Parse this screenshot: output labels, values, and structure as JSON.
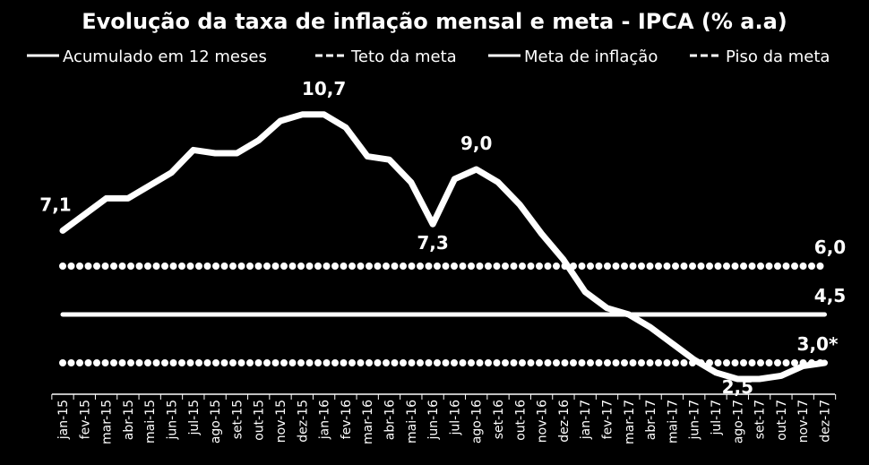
{
  "chart_data": {
    "type": "line",
    "title": "Evolução da taxa de inflação mensal e meta - IPCA (% a.a)",
    "categories": [
      "jan-15",
      "fev-15",
      "mar-15",
      "abr-15",
      "mai-15",
      "jun-15",
      "jul-15",
      "ago-15",
      "set-15",
      "out-15",
      "nov-15",
      "dez-15",
      "jan-16",
      "fev-16",
      "mar-16",
      "abr-16",
      "mai-16",
      "jun-16",
      "jul-16",
      "ago-16",
      "set-16",
      "out-16",
      "nov-16",
      "dez-16",
      "jan-17",
      "fev-17",
      "mar-17",
      "abr-17",
      "mai-17",
      "jun-17",
      "jul-17",
      "ago-17",
      "set-17",
      "out-17",
      "nov-17",
      "dez-17"
    ],
    "ylim": [
      2.0,
      11.5
    ],
    "series": [
      {
        "name": "Acumulado em 12 meses",
        "color": "#ffffff",
        "dashed": false,
        "values": [
          7.1,
          7.6,
          8.1,
          8.1,
          8.5,
          8.9,
          9.6,
          9.5,
          9.5,
          9.9,
          10.5,
          10.7,
          10.7,
          10.3,
          9.4,
          9.3,
          8.6,
          7.3,
          8.7,
          9.0,
          8.6,
          7.9,
          7.0,
          6.2,
          5.2,
          4.7,
          4.5,
          4.1,
          3.6,
          3.1,
          2.7,
          2.5,
          2.5,
          2.6,
          2.9,
          3.0
        ],
        "value_labels": [
          "7,1",
          null,
          null,
          null,
          null,
          null,
          null,
          null,
          null,
          null,
          null,
          null,
          "10,7",
          null,
          null,
          null,
          null,
          "7,3",
          null,
          "9,0",
          null,
          null,
          null,
          null,
          null,
          null,
          null,
          null,
          null,
          null,
          null,
          "2,5",
          null,
          null,
          null,
          null
        ]
      },
      {
        "name": "Teto da meta",
        "color": "#ffffff",
        "dashed": true,
        "values": [
          6.0,
          6.0,
          6.0,
          6.0,
          6.0,
          6.0,
          6.0,
          6.0,
          6.0,
          6.0,
          6.0,
          6.0,
          6.0,
          6.0,
          6.0,
          6.0,
          6.0,
          6.0,
          6.0,
          6.0,
          6.0,
          6.0,
          6.0,
          6.0,
          6.0,
          6.0,
          6.0,
          6.0,
          6.0,
          6.0,
          6.0,
          6.0,
          6.0,
          6.0,
          6.0,
          6.0
        ],
        "value_labels": [
          null,
          null,
          null,
          null,
          null,
          null,
          null,
          null,
          null,
          null,
          null,
          null,
          null,
          null,
          null,
          null,
          null,
          null,
          null,
          null,
          null,
          null,
          null,
          null,
          null,
          null,
          null,
          null,
          null,
          null,
          null,
          null,
          null,
          null,
          null,
          "6,0"
        ]
      },
      {
        "name": "Meta de inflação",
        "color": "#ffffff",
        "dashed": false,
        "values": [
          4.5,
          4.5,
          4.5,
          4.5,
          4.5,
          4.5,
          4.5,
          4.5,
          4.5,
          4.5,
          4.5,
          4.5,
          4.5,
          4.5,
          4.5,
          4.5,
          4.5,
          4.5,
          4.5,
          4.5,
          4.5,
          4.5,
          4.5,
          4.5,
          4.5,
          4.5,
          4.5,
          4.5,
          4.5,
          4.5,
          4.5,
          4.5,
          4.5,
          4.5,
          4.5,
          4.5
        ],
        "value_labels": [
          null,
          null,
          null,
          null,
          null,
          null,
          null,
          null,
          null,
          null,
          null,
          null,
          null,
          null,
          null,
          null,
          null,
          null,
          null,
          null,
          null,
          null,
          null,
          null,
          null,
          null,
          null,
          null,
          null,
          null,
          null,
          null,
          null,
          null,
          null,
          "4,5"
        ]
      },
      {
        "name": "Piso da meta",
        "color": "#ffffff",
        "dashed": true,
        "values": [
          3.0,
          3.0,
          3.0,
          3.0,
          3.0,
          3.0,
          3.0,
          3.0,
          3.0,
          3.0,
          3.0,
          3.0,
          3.0,
          3.0,
          3.0,
          3.0,
          3.0,
          3.0,
          3.0,
          3.0,
          3.0,
          3.0,
          3.0,
          3.0,
          3.0,
          3.0,
          3.0,
          3.0,
          3.0,
          3.0,
          3.0,
          3.0,
          3.0,
          3.0,
          3.0,
          3.0
        ],
        "value_labels": [
          null,
          null,
          null,
          null,
          null,
          null,
          null,
          null,
          null,
          null,
          null,
          null,
          null,
          null,
          null,
          null,
          null,
          null,
          null,
          null,
          null,
          null,
          null,
          null,
          null,
          null,
          null,
          null,
          null,
          null,
          null,
          null,
          null,
          null,
          null,
          "3,0*"
        ]
      }
    ]
  }
}
